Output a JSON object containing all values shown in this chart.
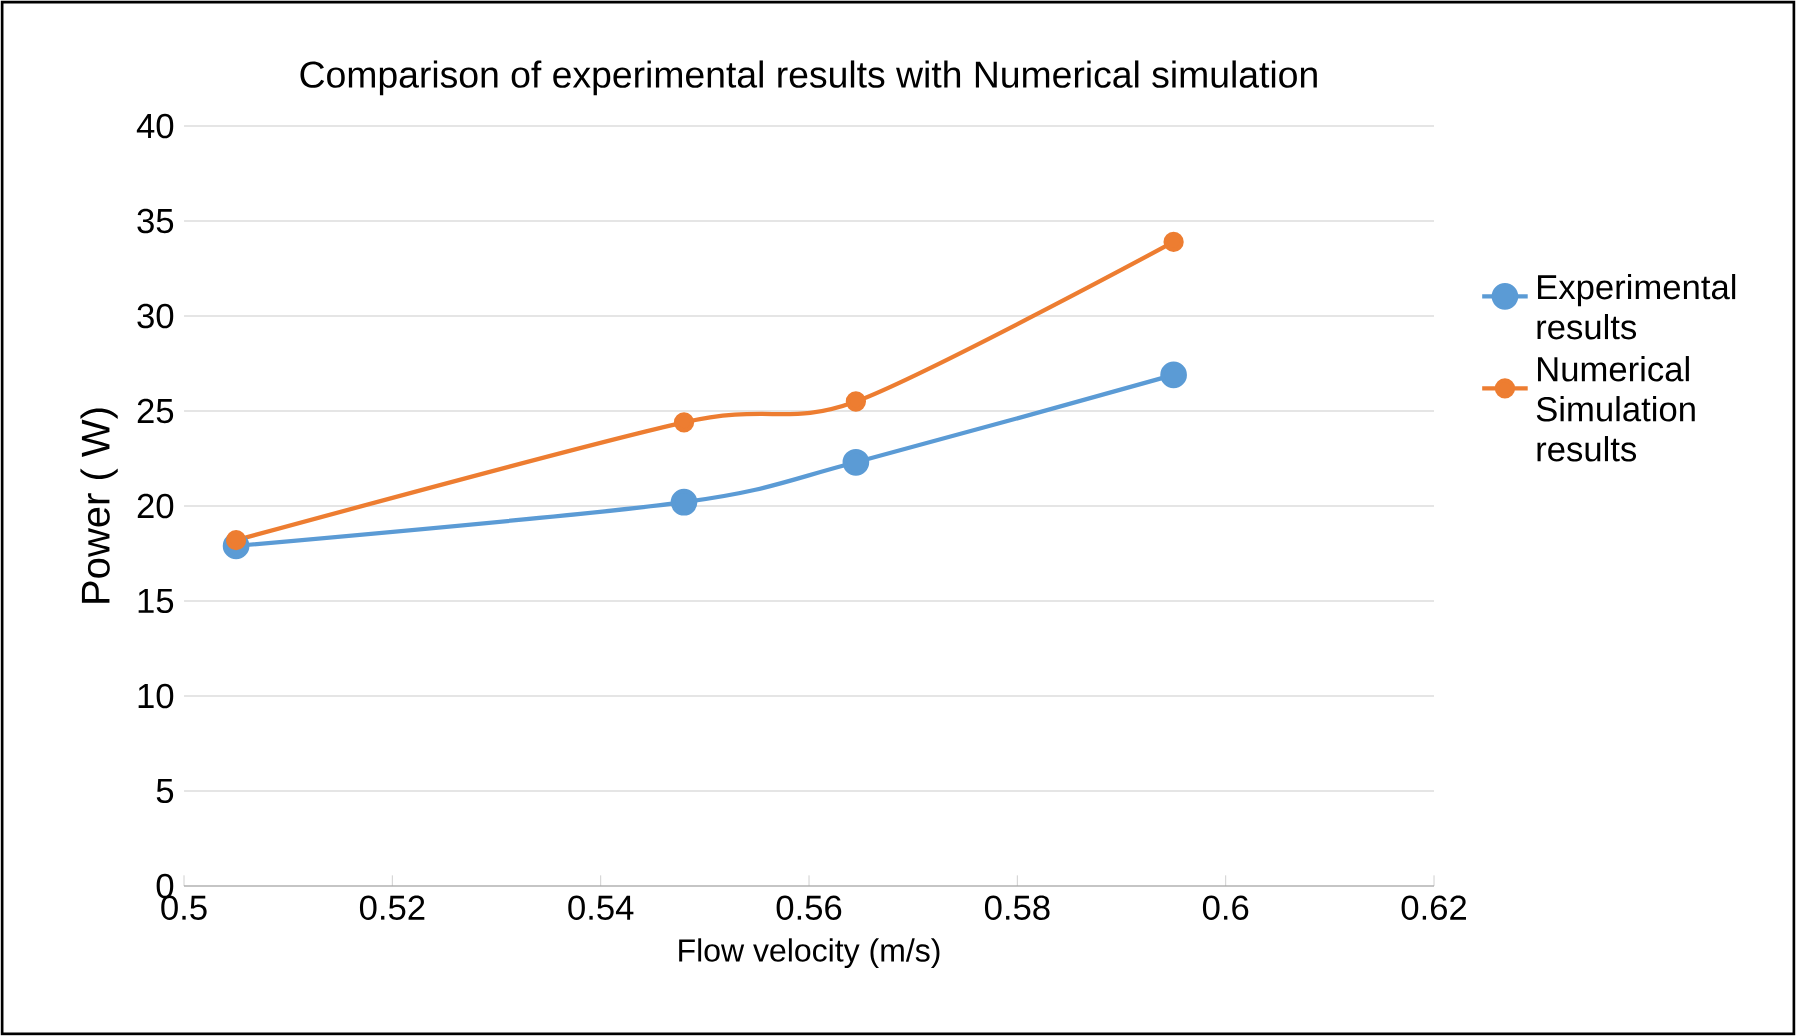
{
  "chart_data": {
    "type": "line",
    "title": "Comparison of experimental results with Numerical simulation",
    "xlabel": "Flow velocity (m/s)",
    "ylabel": "Power ( W)",
    "x": [
      0.505,
      0.548,
      0.5645,
      0.595
    ],
    "series": [
      {
        "name": "Experimental results",
        "color": "#5b9bd5",
        "values": [
          17.9,
          20.2,
          22.3,
          26.9
        ]
      },
      {
        "name": "Numerical Simulation results",
        "color": "#ed7d31",
        "values": [
          18.2,
          24.4,
          25.5,
          33.9
        ]
      }
    ],
    "xlim": [
      0.5,
      0.62
    ],
    "xticks": [
      0.5,
      0.52,
      0.54,
      0.56,
      0.58,
      0.6,
      0.62
    ],
    "ylim": [
      0,
      40
    ],
    "yticks": [
      0,
      5,
      10,
      15,
      20,
      25,
      30,
      35,
      40
    ],
    "grid": "y",
    "legend": "right",
    "marker": "circle",
    "line_style": "solid"
  }
}
